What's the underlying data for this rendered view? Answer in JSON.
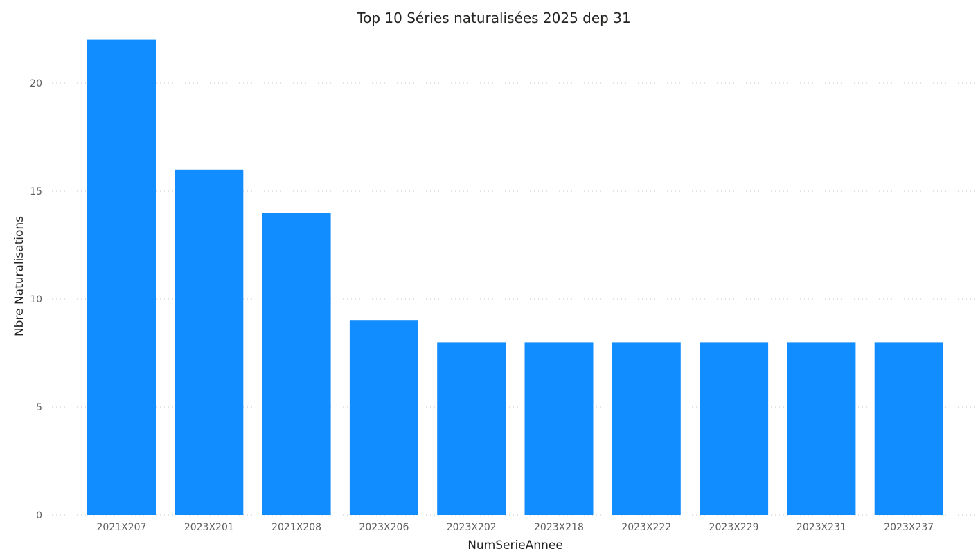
{
  "colors": {
    "bar": "#118dff",
    "text": "#252423",
    "tick": "#605e5c",
    "grid": "#c8c6c4"
  },
  "chart_data": {
    "type": "bar",
    "title": "Top 10 Séries naturalisées 2025 dep 31",
    "xlabel": "NumSerieAnnee",
    "ylabel": "Nbre Naturalisations",
    "categories": [
      "2021X207",
      "2023X201",
      "2021X208",
      "2023X206",
      "2023X202",
      "2023X218",
      "2023X222",
      "2023X229",
      "2023X231",
      "2023X237"
    ],
    "values": [
      22,
      16,
      14,
      9,
      8,
      8,
      8,
      8,
      8,
      8
    ],
    "ylim": [
      0,
      22
    ],
    "yticks": [
      0,
      5,
      10,
      15,
      20
    ],
    "grid": true,
    "legend": "none"
  }
}
